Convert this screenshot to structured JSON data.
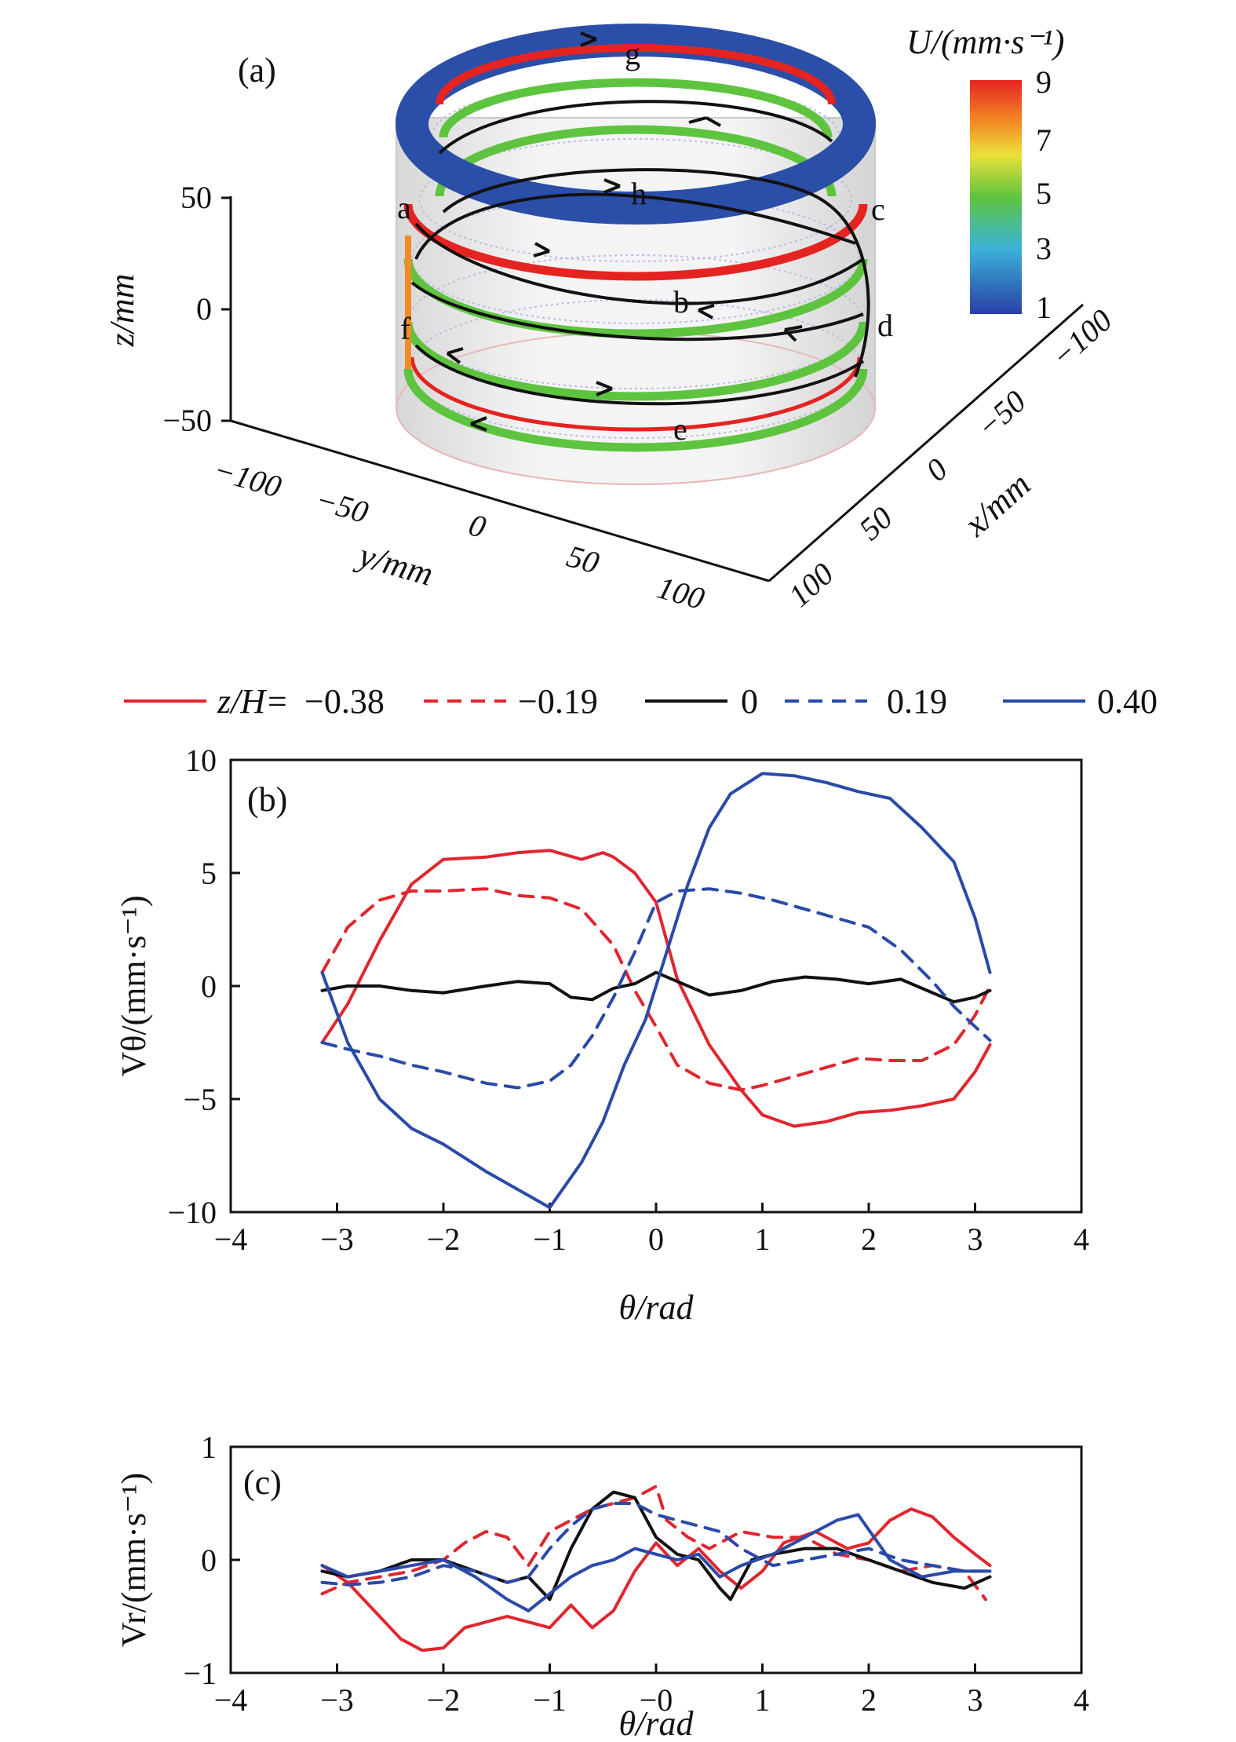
{
  "figure": {
    "panel_a": {
      "label": "(a)",
      "colorbar": {
        "title": "U/(mm·s⁻¹)",
        "ticks": [
          "9",
          "7",
          "5",
          "3",
          "1"
        ],
        "range": [
          1,
          9
        ]
      },
      "z_axis": {
        "label": "z/mm",
        "ticks": [
          "50",
          "0",
          "−50"
        ]
      },
      "y_axis": {
        "label": "y/mm",
        "ticks": [
          "−100",
          "−50",
          "0",
          "50",
          "100"
        ]
      },
      "x_axis": {
        "label": "x/mm",
        "ticks": [
          "100",
          "50",
          "0",
          "−50",
          "−100"
        ]
      },
      "points": [
        "a",
        "b",
        "c",
        "d",
        "e",
        "f",
        "g",
        "h"
      ]
    },
    "legend": {
      "prefix": "z/H=",
      "entries": [
        {
          "label": "−0.38",
          "color": "#e0262e",
          "dash": "solid"
        },
        {
          "label": "−0.19",
          "color": "#e0262e",
          "dash": "dashed"
        },
        {
          "label": "0",
          "color": "#111111",
          "dash": "solid"
        },
        {
          "label": "0.19",
          "color": "#2a4aa8",
          "dash": "dashed"
        },
        {
          "label": "0.40",
          "color": "#2a4aa8",
          "dash": "solid"
        }
      ]
    }
  },
  "chart_data": [
    {
      "panel": "(b)",
      "type": "line",
      "xlabel": "θ/rad",
      "ylabel": "Vθ/(mm·s⁻¹)",
      "xlim": [
        -4,
        4
      ],
      "ylim": [
        -10,
        10
      ],
      "xticks": [
        -4,
        -3,
        -2,
        -1,
        0,
        1,
        2,
        3,
        4
      ],
      "yticks": [
        -10,
        -5,
        0,
        5,
        10
      ],
      "xtick_labels": [
        "−4",
        "−3",
        "−2",
        "−1",
        "0",
        "1",
        "2",
        "3",
        "4"
      ],
      "ytick_labels": [
        "−10",
        "−5",
        "0",
        "5",
        "10"
      ],
      "series": [
        {
          "name": "z/H=−0.38",
          "color": "#e0262e",
          "dash": "solid",
          "x": [
            -3.14,
            -2.9,
            -2.6,
            -2.3,
            -2.0,
            -1.6,
            -1.3,
            -1.0,
            -0.7,
            -0.5,
            -0.4,
            -0.2,
            0.0,
            0.2,
            0.5,
            0.8,
            1.0,
            1.3,
            1.6,
            1.9,
            2.2,
            2.5,
            2.8,
            3.0,
            3.14
          ],
          "y": [
            -2.5,
            -0.8,
            2.0,
            4.5,
            5.6,
            5.7,
            5.9,
            6.0,
            5.6,
            5.9,
            5.7,
            5.0,
            3.7,
            0.3,
            -2.6,
            -4.6,
            -5.7,
            -6.2,
            -6.0,
            -5.6,
            -5.5,
            -5.3,
            -5.0,
            -3.8,
            -2.6
          ]
        },
        {
          "name": "z/H=−0.19",
          "color": "#e0262e",
          "dash": "dashed",
          "x": [
            -3.14,
            -2.9,
            -2.6,
            -2.3,
            -2.0,
            -1.6,
            -1.3,
            -1.0,
            -0.7,
            -0.4,
            -0.2,
            0.0,
            0.2,
            0.5,
            0.8,
            1.0,
            1.3,
            1.6,
            1.9,
            2.2,
            2.5,
            2.8,
            3.0,
            3.14
          ],
          "y": [
            0.6,
            2.6,
            3.8,
            4.2,
            4.2,
            4.3,
            4.0,
            3.9,
            3.4,
            1.8,
            -0.2,
            -1.8,
            -3.5,
            -4.3,
            -4.6,
            -4.4,
            -4.0,
            -3.6,
            -3.2,
            -3.3,
            -3.3,
            -2.6,
            -1.3,
            0.0
          ]
        },
        {
          "name": "z/H=0",
          "color": "#111111",
          "dash": "solid",
          "x": [
            -3.14,
            -2.9,
            -2.6,
            -2.3,
            -2.0,
            -1.6,
            -1.3,
            -1.0,
            -0.8,
            -0.6,
            -0.4,
            -0.2,
            0.0,
            0.2,
            0.5,
            0.8,
            1.1,
            1.4,
            1.7,
            2.0,
            2.3,
            2.6,
            2.8,
            3.0,
            3.14
          ],
          "y": [
            -0.2,
            0.0,
            0.0,
            -0.2,
            -0.3,
            0.0,
            0.2,
            0.1,
            -0.5,
            -0.6,
            -0.1,
            0.1,
            0.6,
            0.2,
            -0.4,
            -0.2,
            0.2,
            0.4,
            0.3,
            0.1,
            0.3,
            -0.3,
            -0.7,
            -0.5,
            -0.2
          ]
        },
        {
          "name": "z/H=0.19",
          "color": "#2a4aa8",
          "dash": "dashed",
          "x": [
            -3.14,
            -2.9,
            -2.6,
            -2.3,
            -2.0,
            -1.6,
            -1.3,
            -1.0,
            -0.8,
            -0.6,
            -0.4,
            -0.2,
            0.0,
            0.2,
            0.5,
            0.8,
            1.1,
            1.4,
            1.7,
            2.0,
            2.3,
            2.6,
            2.8,
            3.0,
            3.14
          ],
          "y": [
            -2.5,
            -2.8,
            -3.1,
            -3.5,
            -3.8,
            -4.3,
            -4.5,
            -4.2,
            -3.5,
            -2.2,
            -0.5,
            1.5,
            3.7,
            4.2,
            4.3,
            4.1,
            3.8,
            3.4,
            3.0,
            2.6,
            1.6,
            0.2,
            -0.9,
            -1.8,
            -2.4
          ]
        },
        {
          "name": "z/H=0.40",
          "color": "#2a4aa8",
          "dash": "solid",
          "x": [
            -3.14,
            -2.9,
            -2.6,
            -2.3,
            -2.0,
            -1.6,
            -1.3,
            -1.0,
            -0.7,
            -0.5,
            -0.3,
            -0.1,
            0.1,
            0.3,
            0.5,
            0.7,
            1.0,
            1.3,
            1.6,
            1.9,
            2.2,
            2.5,
            2.8,
            3.0,
            3.14
          ],
          "y": [
            0.6,
            -2.5,
            -5.0,
            -6.3,
            -7.0,
            -8.2,
            -9.0,
            -9.8,
            -7.8,
            -6.0,
            -3.5,
            -1.5,
            1.5,
            4.5,
            7.0,
            8.5,
            9.4,
            9.3,
            9.0,
            8.6,
            8.3,
            7.0,
            5.5,
            3.0,
            0.6
          ]
        }
      ]
    },
    {
      "panel": "(c)",
      "type": "line",
      "xlabel": "θ/rad",
      "ylabel": "Vr/(mm·s⁻¹)",
      "xlim": [
        -4,
        4
      ],
      "ylim": [
        -1,
        1
      ],
      "xticks": [
        -4,
        -3,
        -2,
        -1,
        0,
        1,
        2,
        3,
        4
      ],
      "yticks": [
        -1,
        0,
        1
      ],
      "xtick_labels": [
        "−4",
        "−3",
        "−2",
        "−1",
        "−0",
        "1",
        "2",
        "3",
        "4"
      ],
      "ytick_labels": [
        "−1",
        "0",
        "1"
      ],
      "series": [
        {
          "name": "z/H=−0.38",
          "color": "#e0262e",
          "dash": "solid",
          "x": [
            -3.14,
            -2.9,
            -2.6,
            -2.4,
            -2.2,
            -2.0,
            -1.8,
            -1.6,
            -1.4,
            -1.2,
            -1.0,
            -0.8,
            -0.6,
            -0.4,
            -0.2,
            0.0,
            0.2,
            0.4,
            0.6,
            0.8,
            1.0,
            1.2,
            1.5,
            1.8,
            2.0,
            2.2,
            2.4,
            2.6,
            2.8,
            3.0,
            3.14
          ],
          "y": [
            -0.05,
            -0.2,
            -0.5,
            -0.7,
            -0.8,
            -0.78,
            -0.6,
            -0.55,
            -0.5,
            -0.55,
            -0.6,
            -0.4,
            -0.6,
            -0.45,
            -0.1,
            0.15,
            -0.05,
            0.1,
            -0.1,
            -0.25,
            -0.1,
            0.15,
            0.25,
            0.1,
            0.15,
            0.35,
            0.45,
            0.38,
            0.2,
            0.05,
            -0.05
          ]
        },
        {
          "name": "z/H=−0.19",
          "color": "#e0262e",
          "dash": "dashed",
          "x": [
            -3.14,
            -2.9,
            -2.6,
            -2.3,
            -2.0,
            -1.8,
            -1.6,
            -1.4,
            -1.2,
            -1.0,
            -0.8,
            -0.6,
            -0.4,
            -0.2,
            0.0,
            0.1,
            0.3,
            0.5,
            0.8,
            1.1,
            1.4,
            1.7,
            2.0,
            2.3,
            2.6,
            2.9,
            3.1
          ],
          "y": [
            -0.3,
            -0.2,
            -0.15,
            -0.1,
            0.0,
            0.15,
            0.25,
            0.2,
            -0.05,
            0.25,
            0.35,
            0.45,
            0.5,
            0.55,
            0.65,
            0.35,
            0.2,
            0.1,
            0.25,
            0.2,
            0.2,
            0.05,
            0.0,
            -0.1,
            -0.05,
            -0.1,
            -0.35
          ]
        },
        {
          "name": "z/H=0",
          "color": "#111111",
          "dash": "solid",
          "x": [
            -3.14,
            -2.9,
            -2.6,
            -2.3,
            -2.0,
            -1.7,
            -1.4,
            -1.2,
            -1.0,
            -0.8,
            -0.6,
            -0.4,
            -0.2,
            0.0,
            0.2,
            0.4,
            0.6,
            0.7,
            0.9,
            1.1,
            1.4,
            1.7,
            2.0,
            2.3,
            2.6,
            2.9,
            3.14
          ],
          "y": [
            -0.1,
            -0.15,
            -0.1,
            0.0,
            0.0,
            -0.1,
            -0.2,
            -0.15,
            -0.35,
            0.1,
            0.45,
            0.6,
            0.55,
            0.2,
            0.05,
            0.0,
            -0.25,
            -0.35,
            0.0,
            0.05,
            0.1,
            0.1,
            0.0,
            -0.1,
            -0.2,
            -0.25,
            -0.15
          ]
        },
        {
          "name": "z/H=0.19",
          "color": "#2a4aa8",
          "dash": "dashed",
          "x": [
            -3.14,
            -2.9,
            -2.6,
            -2.3,
            -2.0,
            -1.7,
            -1.4,
            -1.2,
            -1.0,
            -0.8,
            -0.6,
            -0.4,
            -0.2,
            0.0,
            0.2,
            0.4,
            0.6,
            0.8,
            1.1,
            1.4,
            1.7,
            2.0,
            2.3,
            2.6,
            2.9,
            3.14
          ],
          "y": [
            -0.2,
            -0.22,
            -0.2,
            -0.15,
            -0.05,
            -0.1,
            -0.2,
            -0.15,
            0.1,
            0.3,
            0.45,
            0.5,
            0.5,
            0.4,
            0.35,
            0.3,
            0.25,
            0.1,
            -0.05,
            0.0,
            0.05,
            0.1,
            0.0,
            -0.05,
            -0.1,
            -0.1
          ]
        },
        {
          "name": "z/H=0.40",
          "color": "#2a4aa8",
          "dash": "solid",
          "x": [
            -3.14,
            -2.9,
            -2.6,
            -2.3,
            -2.0,
            -1.7,
            -1.4,
            -1.2,
            -1.0,
            -0.8,
            -0.6,
            -0.4,
            -0.2,
            0.0,
            0.2,
            0.4,
            0.6,
            0.8,
            1.1,
            1.4,
            1.7,
            1.9,
            2.2,
            2.5,
            2.8,
            3.0,
            3.14
          ],
          "y": [
            -0.05,
            -0.15,
            -0.1,
            -0.05,
            0.0,
            -0.15,
            -0.35,
            -0.45,
            -0.3,
            -0.15,
            -0.05,
            0.0,
            0.1,
            0.05,
            0.0,
            0.05,
            -0.15,
            -0.05,
            0.05,
            0.2,
            0.35,
            0.4,
            0.0,
            -0.15,
            -0.1,
            -0.1,
            -0.1
          ]
        }
      ]
    }
  ]
}
